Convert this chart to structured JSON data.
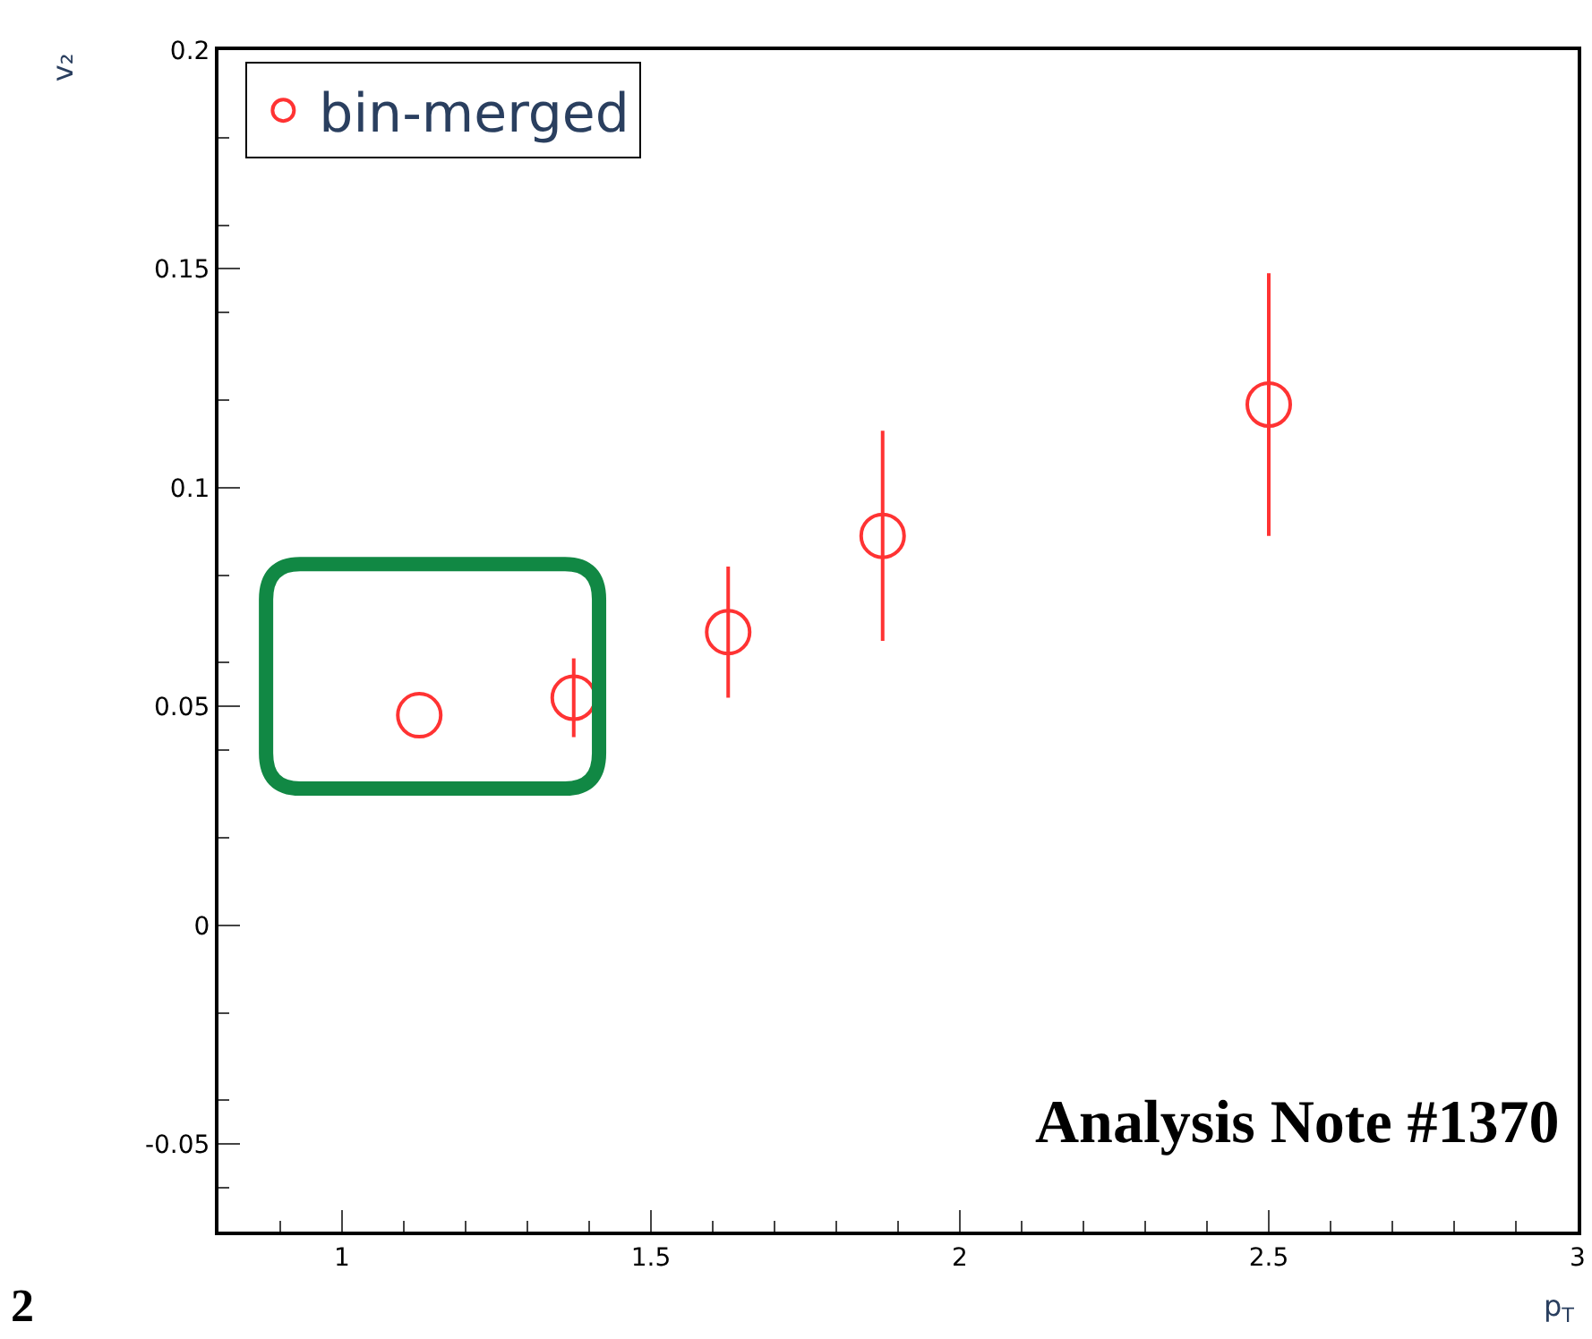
{
  "chart_data": {
    "type": "scatter",
    "xlabel": "p$_{T}$",
    "ylabel": "v₂",
    "x": [
      1.125,
      1.375,
      1.625,
      1.875,
      2.5
    ],
    "series": [
      {
        "name": "bin-merged",
        "color": "#ff3333",
        "values": [
          0.048,
          0.052,
          0.067,
          0.089,
          0.119
        ],
        "errors": [
          null,
          0.009,
          0.015,
          0.024,
          0.03
        ]
      }
    ],
    "xlim": [
      0.8,
      3
    ],
    "ylim": [
      -0.07,
      0.2
    ],
    "xticks": [
      1,
      1.5,
      2,
      2.5,
      3
    ],
    "yticks": [
      {
        "value": -0.05,
        "label": "-0.05"
      },
      0,
      0.05,
      0.1,
      0.15,
      0.2
    ],
    "marker": "circle",
    "legend": "top left",
    "annotations": [
      "Analysis Note #1370",
      "2"
    ]
  }
}
